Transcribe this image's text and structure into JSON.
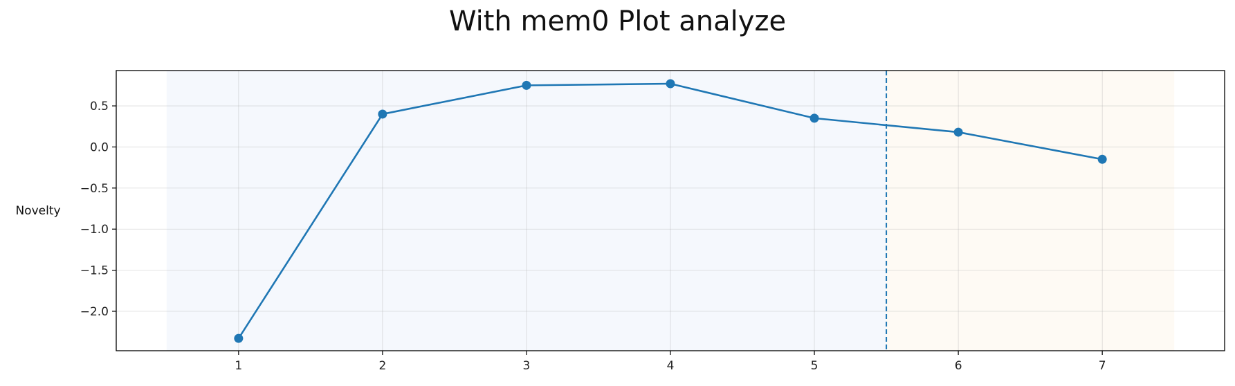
{
  "chart_data": {
    "type": "line",
    "title": "With mem0 Plot analyze",
    "xlabel": "",
    "ylabel": "Novelty",
    "x": [
      1,
      2,
      3,
      4,
      5,
      6,
      7
    ],
    "series": [
      {
        "values": [
          -2.33,
          0.4,
          0.75,
          0.77,
          0.35,
          0.18,
          -0.15
        ],
        "color": "#1f77b4"
      }
    ],
    "xticks": [
      1,
      2,
      3,
      4,
      5,
      6,
      7
    ],
    "yticks": [
      0.5,
      0.0,
      -0.5,
      -1.0,
      -1.5,
      -2.0
    ],
    "ytick_labels": [
      "0.5",
      "0.0",
      "−0.5",
      "−1.0",
      "−1.5",
      "−2.0"
    ],
    "xlim": [
      0.15,
      7.85
    ],
    "ylim": [
      -2.48,
      0.93
    ],
    "grid": true,
    "shaded_regions": [
      {
        "x_start": 0.5,
        "x_end": 5.5,
        "color": "#f5f8fd"
      },
      {
        "x_start": 5.5,
        "x_end": 7.5,
        "color": "#fefaf4"
      }
    ],
    "vertical_lines": [
      {
        "x": 5.5,
        "style": "dashed",
        "color": "#1f77b4"
      }
    ]
  }
}
